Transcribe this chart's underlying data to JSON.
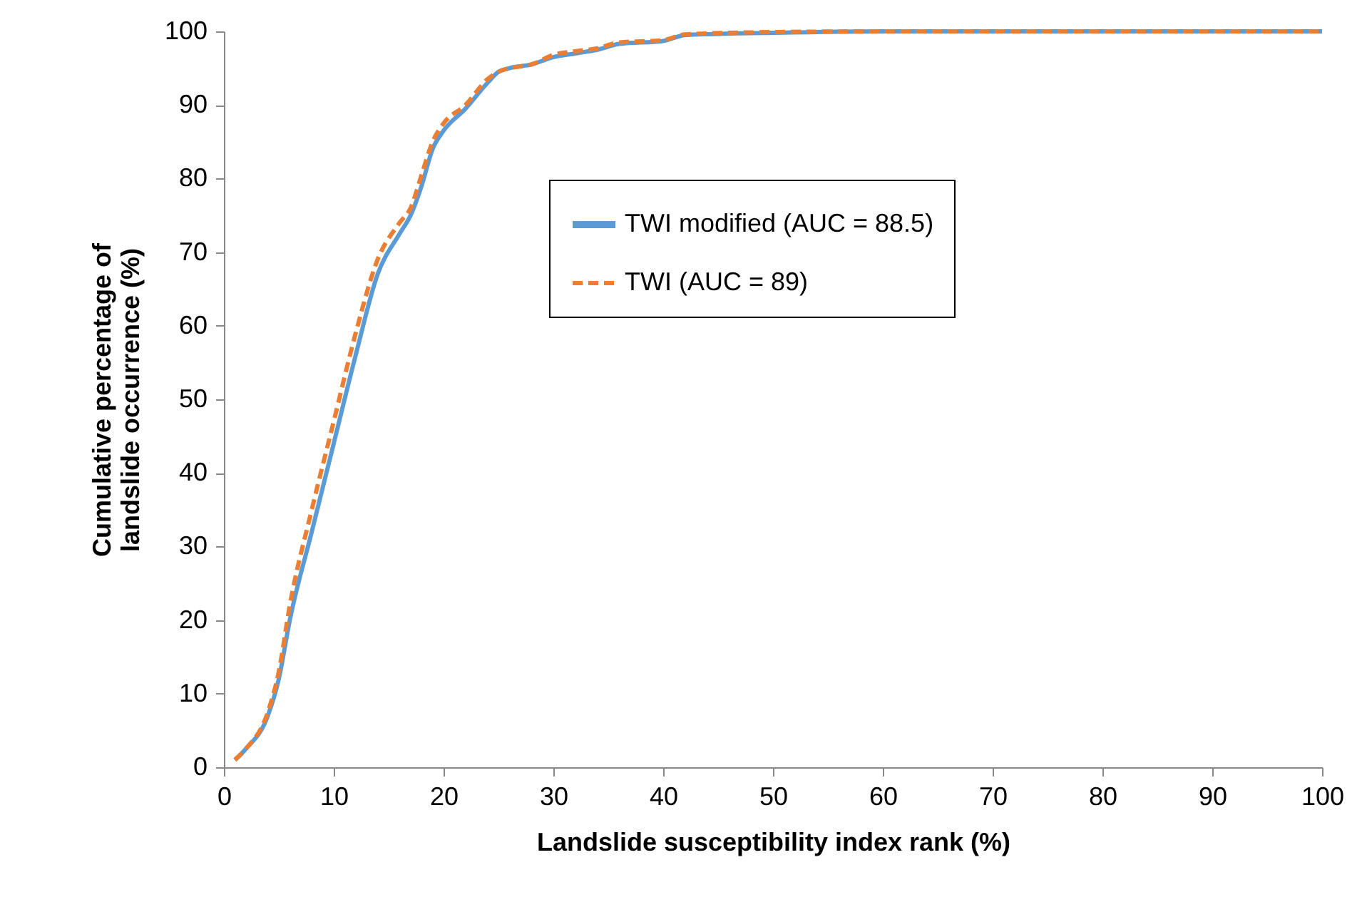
{
  "chart_data": {
    "type": "line",
    "xlabel": "Landslide susceptibility index rank (%)",
    "ylabel": "Cumulative percentage of landslide occurrence (%)",
    "xlim": [
      0,
      100
    ],
    "xticks": [
      0,
      10,
      20,
      30,
      40,
      50,
      60,
      70,
      80,
      90,
      100
    ],
    "ylim": [
      0,
      100
    ],
    "yticks": [
      0,
      10,
      20,
      30,
      40,
      50,
      60,
      70,
      80,
      90,
      100
    ],
    "grid": false,
    "legend": "top right",
    "marker": "none",
    "x": [
      1,
      2,
      4,
      5,
      6,
      8,
      10,
      12,
      14,
      16,
      17,
      18,
      19,
      20,
      22,
      24,
      25,
      26,
      28,
      30,
      32,
      34,
      36,
      40,
      42,
      50,
      60,
      100
    ],
    "series": [
      {
        "name": "TWI modified (AUC = 88.5)",
        "color": "#5b9bd5",
        "line_style": "solid",
        "values": [
          1,
          2.5,
          7,
          12,
          20,
          32,
          44,
          56,
          67,
          72.5,
          75,
          79,
          84,
          86.5,
          89.5,
          93,
          94.5,
          95,
          95.5,
          96.5,
          97,
          97.5,
          98.3,
          98.7,
          99.5,
          99.8,
          100,
          100
        ]
      },
      {
        "name": "TWI (AUC = 89)",
        "color": "#ed7d31",
        "line_style": "dashed",
        "values": [
          1,
          2.5,
          7.5,
          13,
          22,
          35,
          47,
          59,
          69,
          74,
          76,
          80.5,
          85,
          87.5,
          90,
          93.5,
          94.5,
          95,
          95.5,
          96.8,
          97.3,
          97.7,
          98.5,
          98.8,
          99.6,
          99.9,
          100,
          100
        ]
      }
    ]
  }
}
